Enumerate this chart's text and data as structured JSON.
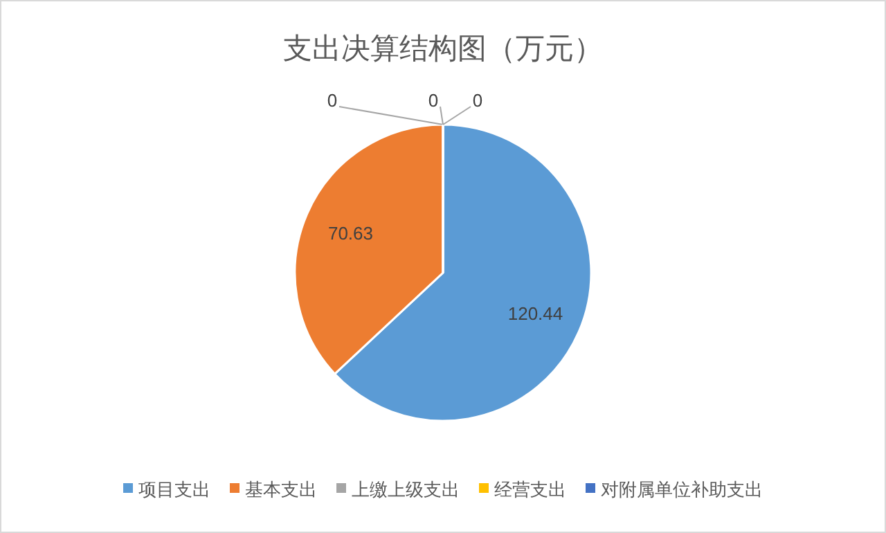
{
  "chart_data": {
    "type": "pie",
    "title": "支出决算结构图（万元）",
    "categories": [
      "项目支出",
      "基本支出",
      "上缴上级支出",
      "经营支出",
      "对附属单位补助支出"
    ],
    "values": [
      120.44,
      70.63,
      0,
      0,
      0
    ],
    "colors": [
      "#5b9bd5",
      "#ed7d31",
      "#a5a5a5",
      "#ffc000",
      "#4472c4"
    ],
    "value_labels": [
      "120.44",
      "70.63",
      "0",
      "0",
      "0"
    ],
    "legend": "bottom"
  }
}
